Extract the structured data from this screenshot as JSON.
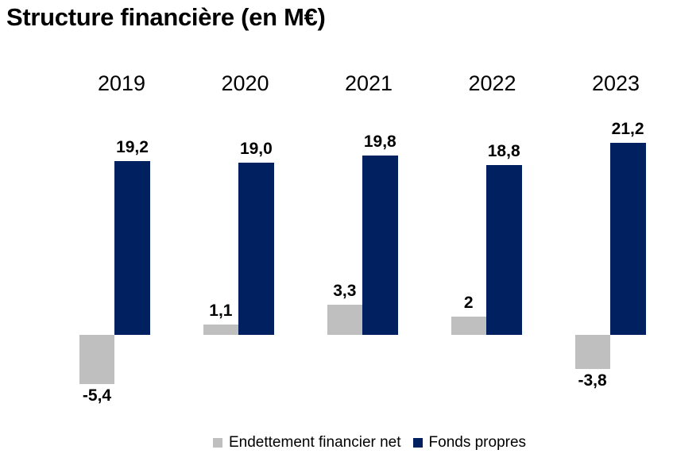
{
  "chart_data": {
    "type": "bar",
    "title": "Structure financière (en M€)",
    "categories": [
      "2019",
      "2020",
      "2021",
      "2022",
      "2023"
    ],
    "series": [
      {
        "name": "Endettement financier net",
        "color": "#BFBFBF",
        "values": [
          -5.4,
          1.1,
          3.3,
          2,
          -3.8
        ],
        "labels": [
          "-5,4",
          "1,1",
          "3,3",
          "2",
          "-3,8"
        ]
      },
      {
        "name": "Fonds propres",
        "color": "#002060",
        "values": [
          19.2,
          19.0,
          19.8,
          18.8,
          21.2
        ],
        "labels": [
          "19,2",
          "19,0",
          "19,8",
          "18,8",
          "21,2"
        ]
      }
    ],
    "value_format": "french-decimal-comma",
    "unit": "M€",
    "grid": false,
    "axes_visible": false,
    "legend_position": "bottom",
    "ylim": [
      -5.4,
      21.2
    ],
    "background_color": "#FFFFFF",
    "text_color": "#000000"
  }
}
